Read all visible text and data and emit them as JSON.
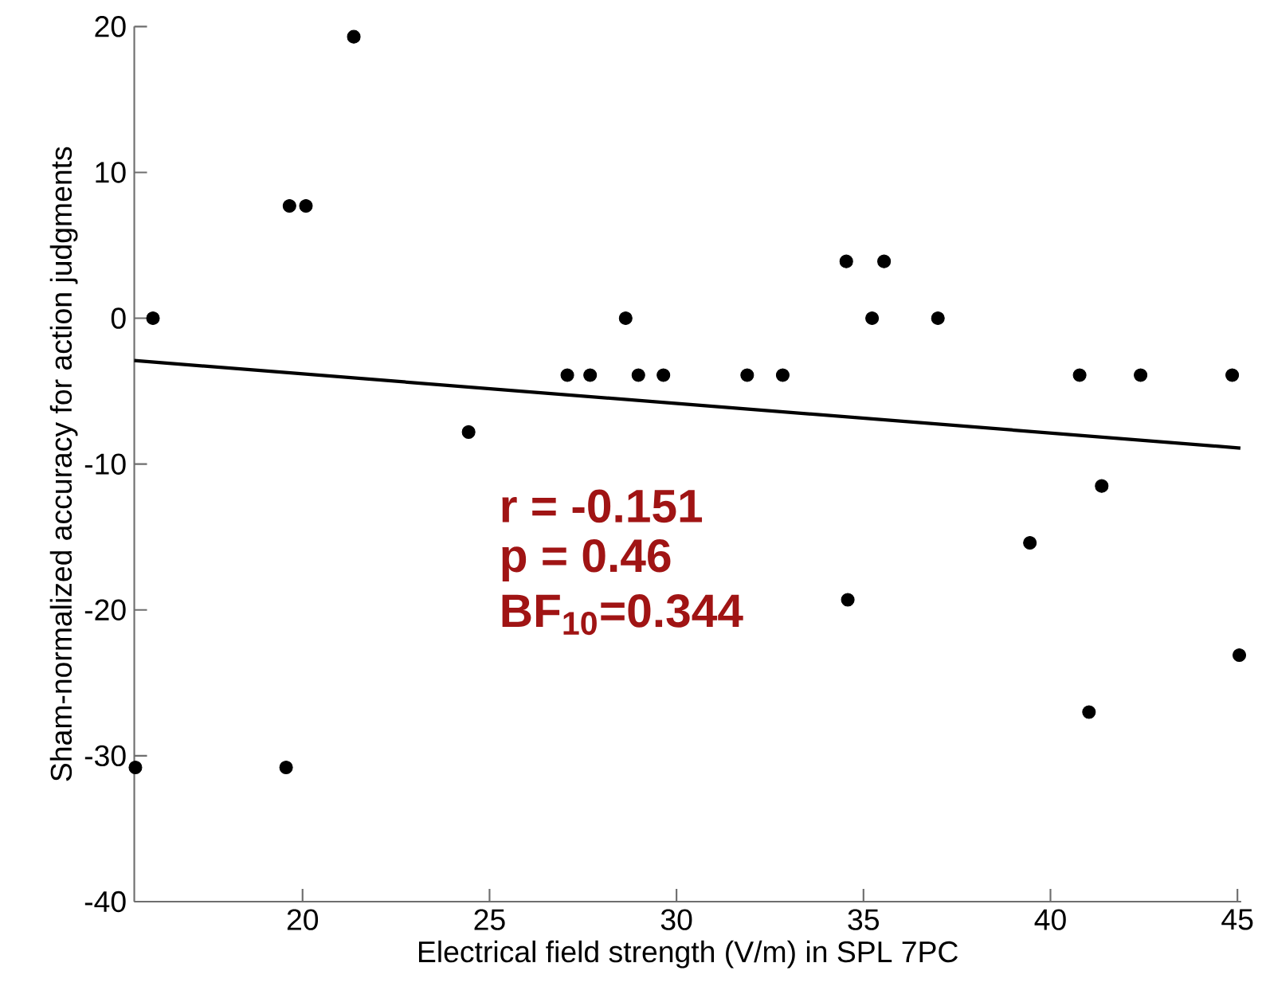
{
  "chart_data": {
    "type": "scatter",
    "xlabel": "Electrical field strength (V/m) in SPL 7PC",
    "ylabel": "Sham-normalized accuracy for action judgments",
    "xlim": [
      15.5,
      45.1
    ],
    "ylim": [
      -40,
      20
    ],
    "xticks": [
      20,
      25,
      30,
      35,
      40,
      45
    ],
    "yticks": [
      -40,
      -30,
      -20,
      -10,
      0,
      10,
      20
    ],
    "annotations": [
      "r = -0.151",
      "p = 0.46",
      "BF$_{10}$=0.344"
    ],
    "series": [
      {
        "type": "scatter",
        "color": "#000000",
        "marker": "circle",
        "x": [
          16.0,
          19.65,
          20.09,
          21.37,
          24.44,
          27.08,
          27.69,
          28.64,
          28.98,
          29.65,
          31.89,
          32.84,
          34.54,
          35.55,
          35.23,
          36.99,
          40.78,
          42.41,
          44.86,
          41.37,
          39.45,
          34.58,
          41.03,
          45.05,
          15.53,
          19.56
        ],
        "values": [
          0,
          7.7,
          7.7,
          19.3,
          -7.8,
          -3.9,
          -3.9,
          0,
          -3.9,
          -3.9,
          -3.9,
          -3.9,
          3.9,
          3.9,
          0,
          0,
          -3.9,
          -3.9,
          -3.9,
          -11.5,
          -15.4,
          -19.3,
          -27.0,
          -23.1,
          -30.8,
          -30.8
        ]
      },
      {
        "type": "line",
        "color": "#000000",
        "line_style": "solid",
        "marker": "none",
        "x": [
          15.5,
          45.08
        ],
        "values": [
          -2.9,
          -8.9
        ]
      }
    ]
  }
}
